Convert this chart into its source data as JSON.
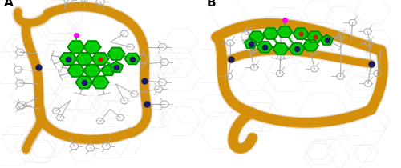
{
  "panel_A_label": "A",
  "panel_B_label": "B",
  "label_fontsize": 11,
  "label_fontweight": "bold",
  "label_color": "#000000",
  "background_color": "#ffffff",
  "orange": "#D4900A",
  "orange_dark": "#9A6200",
  "green": "#00CC00",
  "green_dark": "#008800",
  "dark_blue": "#1a1a5e",
  "gray": "#aaaaaa",
  "gray_dark": "#666666",
  "red": "#CC2200",
  "magenta": "#FF00FF",
  "figsize": [
    5.0,
    2.1
  ],
  "dpi": 100
}
